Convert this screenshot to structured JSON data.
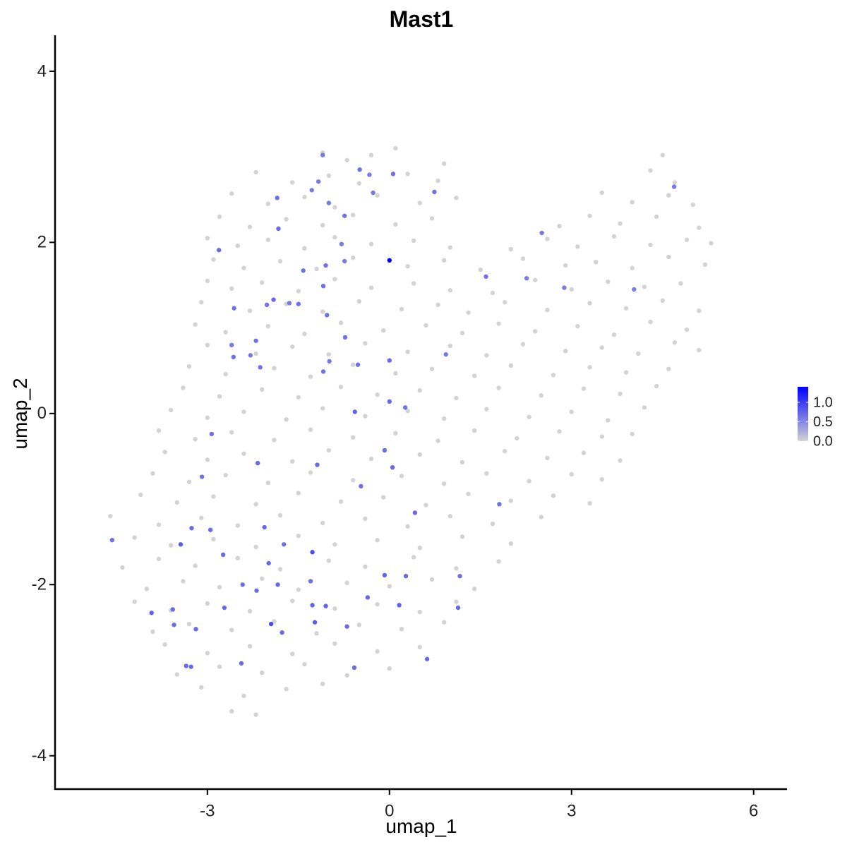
{
  "chart_data": {
    "type": "scatter",
    "title": "Mast1",
    "x_label": "umap_1",
    "y_label": "umap_2",
    "xlim": [
      -5.51,
      6.55
    ],
    "ylim": [
      -4.39,
      4.42
    ],
    "xticks": [
      -3,
      0,
      3,
      6
    ],
    "yticks": [
      -4,
      -2,
      0,
      2,
      4
    ],
    "color_low": "#d3d3d3",
    "color_high": "#0000ff",
    "colorbar": {
      "lim": [
        0,
        1.4
      ],
      "ticks": [
        {
          "value": 0,
          "label": "0.0"
        },
        {
          "value": 0.5,
          "label": "0.5"
        },
        {
          "value": 1,
          "label": "1.0"
        }
      ]
    },
    "x": [
      -1.1,
      -0.7,
      -0.3,
      0.1,
      0.9,
      4.5,
      -2.2,
      -1.6,
      -1.0,
      -0.5,
      0.3,
      0.8,
      4.3,
      4.7,
      -2.6,
      -2.0,
      -1.4,
      -0.9,
      -0.2,
      0.5,
      1.1,
      3.5,
      4.0,
      4.6,
      5.0,
      -2.8,
      -2.3,
      -1.7,
      -1.1,
      -0.6,
      0.1,
      0.7,
      2.8,
      3.3,
      3.8,
      4.4,
      5.1,
      -3.0,
      -2.5,
      -2.0,
      -1.4,
      -0.9,
      -0.3,
      0.4,
      1.0,
      2.0,
      2.6,
      3.1,
      3.7,
      4.3,
      4.9,
      5.3,
      -2.9,
      -2.4,
      -1.8,
      -1.2,
      -0.6,
      0.3,
      0.9,
      1.5,
      2.2,
      2.9,
      3.4,
      4.0,
      4.6,
      5.2,
      -3.0,
      -2.6,
      -2.1,
      -1.5,
      -0.9,
      -0.3,
      0.4,
      1.0,
      1.7,
      2.4,
      3.0,
      3.6,
      4.2,
      4.8,
      -3.1,
      -2.3,
      -1.7,
      -1.1,
      -0.5,
      0.2,
      0.8,
      1.3,
      1.9,
      2.6,
      3.3,
      3.9,
      4.5,
      5.1,
      -3.2,
      -2.7,
      -2.0,
      -1.4,
      -0.8,
      -0.1,
      0.6,
      1.2,
      1.8,
      2.4,
      3.1,
      3.7,
      4.3,
      4.9,
      -3.0,
      -2.2,
      -1.6,
      -1.0,
      -0.4,
      0.3,
      1.0,
      1.6,
      2.2,
      2.9,
      3.5,
      4.1,
      4.7,
      5.1,
      -3.3,
      -2.7,
      -1.9,
      -1.3,
      -0.6,
      0.1,
      0.7,
      1.4,
      2.0,
      2.7,
      3.3,
      3.9,
      4.6,
      -3.4,
      -2.8,
      -2.1,
      -1.5,
      -0.8,
      -0.2,
      0.5,
      1.1,
      1.8,
      2.5,
      3.2,
      3.8,
      4.4,
      -3.6,
      -3.0,
      -2.4,
      -1.7,
      -1.1,
      -0.4,
      0.3,
      0.9,
      1.6,
      2.3,
      3.0,
      3.6,
      4.2,
      -3.8,
      -3.2,
      -2.6,
      -1.9,
      -1.3,
      -0.6,
      0.1,
      0.8,
      1.4,
      2.1,
      2.8,
      3.5,
      4.0,
      -3.7,
      -3.0,
      -2.4,
      -1.6,
      -1.0,
      -0.3,
      0.5,
      1.2,
      1.9,
      2.6,
      3.2,
      3.8,
      -3.9,
      -3.3,
      -2.7,
      -2.0,
      -1.3,
      -0.6,
      0.2,
      0.9,
      1.6,
      2.3,
      3.0,
      3.5,
      -4.1,
      -3.5,
      -2.9,
      -2.2,
      -1.5,
      -0.8,
      -0.1,
      0.6,
      1.3,
      2.0,
      2.7,
      3.3,
      -4.6,
      -3.8,
      -3.1,
      -2.5,
      -1.8,
      -1.1,
      -0.4,
      0.3,
      1.0,
      1.7,
      2.5,
      -4.2,
      -3.6,
      -2.9,
      -2.2,
      -1.5,
      -0.9,
      -0.2,
      0.5,
      1.2,
      2.0,
      -4.4,
      -3.8,
      -3.2,
      -2.5,
      -1.8,
      -1.0,
      -0.4,
      0.4,
      1.1,
      1.8,
      -4.0,
      -3.4,
      -2.8,
      -2.1,
      -1.5,
      -0.7,
      0.0,
      0.7,
      1.4,
      -4.2,
      -3.6,
      -3.0,
      -2.3,
      -1.6,
      -0.9,
      -0.2,
      0.5,
      1.1,
      -3.9,
      -3.3,
      -2.6,
      -1.9,
      -1.2,
      -0.5,
      0.2,
      0.9,
      -3.7,
      -3.0,
      -2.3,
      -1.6,
      -0.9,
      -0.2,
      0.5,
      -3.5,
      -2.8,
      -2.1,
      -1.4,
      -0.7,
      0.0,
      -3.1,
      -2.4,
      -1.7,
      -1.1,
      -2.6,
      -2.2,
      0,
      -1.1,
      -0.49,
      -0.33,
      0.06,
      -1.28,
      -1.17,
      -1.85,
      -1.0,
      -0.27,
      0.74,
      -0.74,
      -1.83,
      -2.81,
      -0.79,
      -0.74,
      -1.05,
      -1.42,
      -1.09,
      1.59,
      2.26,
      2.51,
      4.69,
      4.03,
      2.88,
      -2.56,
      -2.02,
      -1.91,
      -1.65,
      -1.5,
      -1.03,
      -2.6,
      -2.57,
      -2.2,
      -2.29,
      -2.13,
      -0.73,
      -0.99,
      -1.09,
      -0.52,
      0,
      0.93,
      0,
      0.26,
      -0.57,
      -0.08,
      0.05,
      -2.93,
      -2.17,
      -1.19,
      -3.09,
      -0.47,
      0.42,
      1.81,
      -4.57,
      -3.44,
      -3.26,
      -2.95,
      -2.06,
      -1.74,
      -1.27,
      -2.74,
      -1.99,
      -0.08,
      0.27,
      1.16,
      -2.42,
      -1.84,
      -1.3,
      -2.19,
      -0.36,
      0.16,
      1.13,
      -1.05,
      -1.27,
      -2.72,
      -3.57,
      -3.92,
      -3.55,
      -1.95,
      -1.23,
      -0.7,
      -3.19,
      -1.77,
      0.62,
      -0.58,
      -2.44,
      -3.35,
      -3.27
    ],
    "y": [
      3.05,
      2.96,
      3.02,
      3.1,
      2.92,
      3.02,
      2.82,
      2.7,
      2.78,
      2.69,
      2.8,
      2.72,
      2.84,
      2.7,
      2.57,
      2.45,
      2.53,
      2.41,
      2.55,
      2.46,
      2.52,
      2.58,
      2.47,
      2.55,
      2.44,
      2.3,
      2.18,
      2.27,
      2.2,
      2.32,
      2.21,
      2.28,
      2.19,
      2.31,
      2.22,
      2.3,
      2.17,
      2.05,
      1.96,
      2.03,
      1.93,
      2.06,
      1.98,
      2.02,
      1.94,
      1.92,
      2.04,
      1.95,
      2.07,
      1.97,
      2.03,
      1.99,
      1.8,
      1.7,
      1.78,
      1.69,
      1.82,
      1.72,
      1.79,
      1.68,
      1.81,
      1.73,
      1.77,
      1.7,
      1.83,
      1.74,
      1.55,
      1.46,
      1.53,
      1.43,
      1.57,
      1.47,
      1.52,
      1.44,
      1.41,
      1.56,
      1.45,
      1.54,
      1.48,
      1.52,
      1.3,
      1.2,
      1.28,
      1.19,
      1.31,
      1.22,
      1.27,
      1.18,
      1.3,
      1.21,
      1.29,
      1.23,
      1.32,
      1.2,
      1.04,
      0.95,
      1.02,
      0.93,
      1.06,
      0.97,
      1.03,
      0.94,
      1.05,
      0.96,
      1.02,
      0.92,
      1.07,
      0.98,
      0.8,
      0.7,
      0.78,
      0.69,
      0.82,
      0.72,
      0.79,
      0.68,
      0.81,
      0.73,
      0.77,
      0.7,
      0.83,
      0.74,
      0.55,
      0.46,
      0.53,
      0.43,
      0.57,
      0.47,
      0.52,
      0.44,
      0.56,
      0.45,
      0.54,
      0.48,
      0.52,
      0.3,
      0.2,
      0.28,
      0.19,
      0.31,
      0.22,
      0.27,
      0.18,
      0.3,
      0.21,
      0.29,
      0.23,
      0.32,
      0.04,
      -0.05,
      0.02,
      -0.07,
      0.06,
      -0.03,
      0.03,
      -0.06,
      0.05,
      -0.04,
      0.02,
      -0.08,
      0.07,
      -0.2,
      -0.3,
      -0.22,
      -0.31,
      -0.19,
      -0.28,
      -0.23,
      -0.32,
      -0.2,
      -0.29,
      -0.21,
      -0.27,
      -0.24,
      -0.45,
      -0.54,
      -0.47,
      -0.56,
      -0.43,
      -0.53,
      -0.48,
      -0.57,
      -0.44,
      -0.52,
      -0.46,
      -0.55,
      -0.7,
      -0.8,
      -0.72,
      -0.81,
      -0.69,
      -0.78,
      -0.73,
      -0.82,
      -0.7,
      -0.79,
      -0.71,
      -0.77,
      -0.95,
      -1.04,
      -0.97,
      -1.06,
      -0.93,
      -1.03,
      -0.98,
      -1.07,
      -0.94,
      -1.02,
      -0.96,
      -1.05,
      -1.2,
      -1.3,
      -1.22,
      -1.31,
      -1.19,
      -1.28,
      -1.23,
      -1.32,
      -1.2,
      -1.29,
      -1.21,
      -1.45,
      -1.54,
      -1.47,
      -1.56,
      -1.43,
      -1.53,
      -1.48,
      -1.57,
      -1.44,
      -1.52,
      -1.8,
      -1.7,
      -1.78,
      -1.69,
      -1.82,
      -1.72,
      -1.79,
      -1.68,
      -1.81,
      -1.73,
      -2.05,
      -1.96,
      -2.03,
      -1.93,
      -2.06,
      -1.98,
      -2.02,
      -1.94,
      -2.05,
      -2.2,
      -2.3,
      -2.22,
      -2.31,
      -2.19,
      -2.28,
      -2.23,
      -2.32,
      -2.2,
      -2.55,
      -2.46,
      -2.53,
      -2.43,
      -2.57,
      -2.47,
      -2.52,
      -2.44,
      -2.7,
      -2.8,
      -2.72,
      -2.81,
      -2.69,
      -2.78,
      -2.73,
      -3.05,
      -2.96,
      -3.03,
      -2.93,
      -3.06,
      -2.98,
      -3.2,
      -3.3,
      -3.22,
      -3.16,
      -3.48,
      -3.52,
      1.79,
      3.02,
      2.85,
      2.79,
      2.8,
      2.61,
      2.71,
      2.52,
      2.46,
      2.58,
      2.59,
      2.31,
      2.16,
      1.91,
      1.98,
      1.78,
      1.73,
      1.67,
      1.49,
      1.6,
      1.58,
      2.11,
      2.65,
      1.45,
      1.47,
      1.23,
      1.27,
      1.33,
      1.29,
      1.28,
      1.15,
      0.8,
      0.66,
      0.85,
      0.68,
      0.54,
      0.89,
      0.61,
      0.49,
      0.57,
      0.62,
      0.69,
      0.14,
      0.07,
      0.02,
      -0.43,
      -0.63,
      -0.24,
      -0.58,
      -0.6,
      -0.74,
      -0.85,
      -1.16,
      -1.06,
      -1.48,
      -1.53,
      -1.34,
      -1.36,
      -1.33,
      -1.53,
      -1.62,
      -1.65,
      -1.75,
      -1.89,
      -1.9,
      -1.9,
      -2.0,
      -2.0,
      -1.96,
      -2.07,
      -2.15,
      -2.24,
      -2.27,
      -2.25,
      -2.24,
      -2.27,
      -2.29,
      -2.33,
      -2.47,
      -2.46,
      -2.44,
      -2.49,
      -2.52,
      -2.56,
      -2.87,
      -2.97,
      -2.92,
      -2.95,
      -2.96
    ],
    "values": [
      0,
      0,
      0,
      0,
      0,
      0,
      0,
      0,
      0,
      0,
      0,
      0,
      0,
      0,
      0,
      0,
      0,
      0,
      0,
      0,
      0,
      0,
      0,
      0,
      0,
      0,
      0,
      0,
      0,
      0,
      0,
      0,
      0,
      0,
      0,
      0,
      0,
      0,
      0,
      0,
      0,
      0,
      0,
      0,
      0,
      0,
      0,
      0,
      0,
      0,
      0,
      0,
      0,
      0,
      0,
      0,
      0,
      0,
      0,
      0,
      0,
      0,
      0,
      0,
      0,
      0,
      0,
      0,
      0,
      0,
      0,
      0,
      0,
      0,
      0,
      0,
      0,
      0,
      0,
      0,
      0,
      0,
      0,
      0,
      0,
      0,
      0,
      0,
      0,
      0,
      0,
      0,
      0,
      0,
      0,
      0,
      0,
      0,
      0,
      0,
      0,
      0,
      0,
      0,
      0,
      0,
      0,
      0,
      0,
      0,
      0,
      0,
      0,
      0,
      0,
      0,
      0,
      0,
      0,
      0,
      0,
      0,
      0,
      0,
      0,
      0,
      0,
      0,
      0,
      0,
      0,
      0,
      0,
      0,
      0,
      0,
      0,
      0,
      0,
      0,
      0,
      0,
      0,
      0,
      0,
      0,
      0,
      0,
      0,
      0,
      0,
      0,
      0,
      0,
      0,
      0,
      0,
      0,
      0,
      0,
      0,
      0,
      0,
      0,
      0,
      0,
      0,
      0,
      0,
      0,
      0,
      0,
      0,
      0,
      0,
      0,
      0,
      0,
      0,
      0,
      0,
      0,
      0,
      0,
      0,
      0,
      0,
      0,
      0,
      0,
      0,
      0,
      0,
      0,
      0,
      0,
      0,
      0,
      0,
      0,
      0,
      0,
      0,
      0,
      0,
      0,
      0,
      0,
      0,
      0,
      0,
      0,
      0,
      0,
      0,
      0,
      0,
      0,
      0,
      0,
      0,
      0,
      0,
      0,
      0,
      0,
      0,
      0,
      0,
      0,
      0,
      0,
      0,
      0,
      0,
      0,
      0,
      0,
      0,
      0,
      0,
      0,
      0,
      0,
      0,
      0,
      0,
      0,
      0,
      0,
      0,
      0,
      0,
      0,
      0,
      0,
      0,
      0,
      0,
      0,
      0,
      0,
      0,
      0,
      0,
      0,
      0,
      0,
      0,
      0,
      0,
      0,
      0,
      0,
      0,
      0,
      0,
      0,
      0,
      0,
      0,
      0,
      0,
      0,
      0,
      0,
      1.4,
      0.6,
      0.65,
      0.6,
      0.65,
      0.6,
      0.6,
      0.65,
      0.6,
      0.6,
      0.65,
      0.65,
      0.7,
      0.7,
      0.6,
      0.6,
      0.65,
      0.65,
      0.65,
      0.65,
      0.6,
      0.6,
      0.6,
      0.6,
      0.6,
      0.65,
      0.65,
      0.7,
      0.6,
      0.65,
      0.65,
      0.6,
      0.65,
      0.65,
      0.6,
      0.65,
      0.65,
      0.6,
      0.65,
      0.65,
      0.7,
      0.6,
      0.7,
      0.65,
      0.75,
      0.7,
      0.7,
      0.65,
      0.7,
      0.7,
      0.65,
      0.65,
      0.7,
      0.65,
      0.65,
      0.8,
      0.7,
      0.7,
      0.7,
      0.65,
      0.9,
      0.7,
      0.7,
      0.75,
      0.7,
      0.65,
      0.7,
      0.7,
      0.65,
      0.65,
      0.7,
      0.75,
      0.7,
      0.75,
      0.75,
      0.7,
      0.7,
      0.75,
      0.7,
      0.9,
      0.8,
      0.7,
      0.7,
      0.7,
      0.7,
      0.7,
      0.7,
      0.7,
      0.7
    ]
  }
}
